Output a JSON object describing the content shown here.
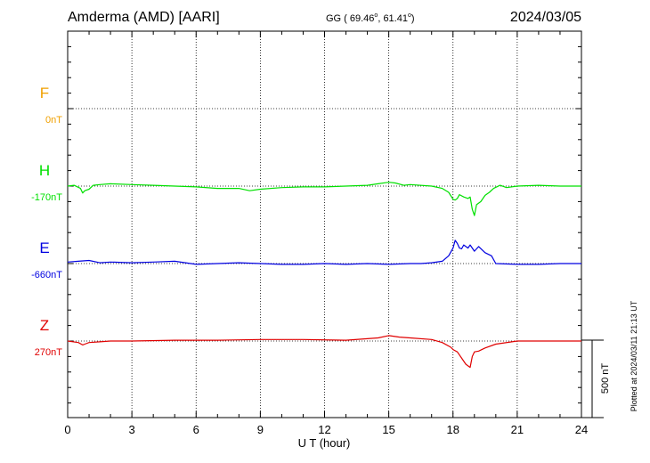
{
  "header": {
    "station": "Amderma (AMD)  [AARI]",
    "coords_prefix": "GG ( 69.46",
    "coords_sep": ",  61.41",
    "coords_suffix": ")",
    "deg": "o",
    "date": "2024/03/05"
  },
  "footer": {
    "plotted": "Plotted at 2024/03/11 21:13 UT",
    "scale": "500 nT"
  },
  "chart_data": {
    "type": "line",
    "title": "Amderma (AMD) [AARI] 2024/03/05",
    "xlabel": "U T (hour)",
    "xlim": [
      0,
      24
    ],
    "xticks": [
      0,
      3,
      6,
      9,
      12,
      15,
      18,
      21,
      24
    ],
    "scale_nT": 500,
    "grid": true,
    "series": [
      {
        "name": "F",
        "baseline_label": "0nT",
        "color": "#f0a000",
        "row": 1,
        "x": [],
        "values": []
      },
      {
        "name": "H",
        "baseline_label": "-170nT",
        "color": "#00e000",
        "row": 2,
        "x": [
          0,
          0.3,
          0.6,
          0.7,
          0.8,
          1.0,
          1.2,
          1.5,
          2,
          3,
          4,
          5,
          6,
          7,
          8,
          8.5,
          9,
          10,
          11,
          12,
          13,
          14,
          14.5,
          15,
          15.3,
          15.7,
          16,
          17,
          17.5,
          17.8,
          18.0,
          18.1,
          18.2,
          18.3,
          18.5,
          18.7,
          18.8,
          18.9,
          19.0,
          19.1,
          19.3,
          19.5,
          19.7,
          19.9,
          20.2,
          20.5,
          21,
          22,
          23,
          24
        ],
        "values": [
          0,
          5,
          -15,
          -45,
          -30,
          -20,
          5,
          10,
          15,
          10,
          5,
          0,
          -5,
          -15,
          -15,
          -30,
          -20,
          -10,
          -5,
          -5,
          0,
          5,
          15,
          25,
          20,
          5,
          10,
          0,
          -15,
          -40,
          -85,
          -90,
          -80,
          -55,
          -70,
          -80,
          -70,
          -150,
          -190,
          -120,
          -100,
          -60,
          -40,
          -15,
          5,
          -10,
          0,
          5,
          0,
          0
        ]
      },
      {
        "name": "E",
        "baseline_label": "-660nT",
        "color": "#0000e0",
        "row": 3,
        "x": [
          0,
          0.5,
          1,
          1.5,
          2,
          3,
          4,
          5,
          6,
          7,
          8,
          9,
          10,
          11,
          12,
          13,
          14,
          15,
          16,
          16.5,
          17,
          17.5,
          17.8,
          18.0,
          18.1,
          18.2,
          18.3,
          18.4,
          18.5,
          18.7,
          18.8,
          19.0,
          19.2,
          19.5,
          19.8,
          20,
          21,
          22,
          23,
          24
        ],
        "values": [
          10,
          15,
          20,
          5,
          10,
          5,
          10,
          15,
          -5,
          0,
          5,
          0,
          -5,
          -5,
          0,
          -5,
          0,
          -5,
          0,
          0,
          5,
          15,
          50,
          100,
          150,
          130,
          100,
          95,
          120,
          100,
          120,
          80,
          110,
          70,
          50,
          0,
          -5,
          -5,
          0,
          0
        ]
      },
      {
        "name": "Z",
        "baseline_label": "270nT",
        "color": "#e00000",
        "row": 4,
        "x": [
          0,
          0.5,
          0.7,
          0.8,
          1,
          1.5,
          2,
          3,
          5,
          7,
          9,
          11,
          13,
          14,
          14.5,
          15,
          15.5,
          16,
          17,
          17.5,
          17.9,
          18.0,
          18.2,
          18.4,
          18.6,
          18.8,
          18.9,
          19.0,
          19.2,
          19.5,
          20,
          21,
          22,
          23,
          24
        ],
        "values": [
          0,
          -10,
          -25,
          -20,
          -10,
          -5,
          0,
          0,
          5,
          5,
          10,
          10,
          5,
          15,
          20,
          35,
          25,
          20,
          10,
          -10,
          -40,
          -55,
          -70,
          -110,
          -150,
          -170,
          -100,
          -70,
          -65,
          -45,
          -20,
          0,
          0,
          0,
          0
        ]
      }
    ]
  }
}
